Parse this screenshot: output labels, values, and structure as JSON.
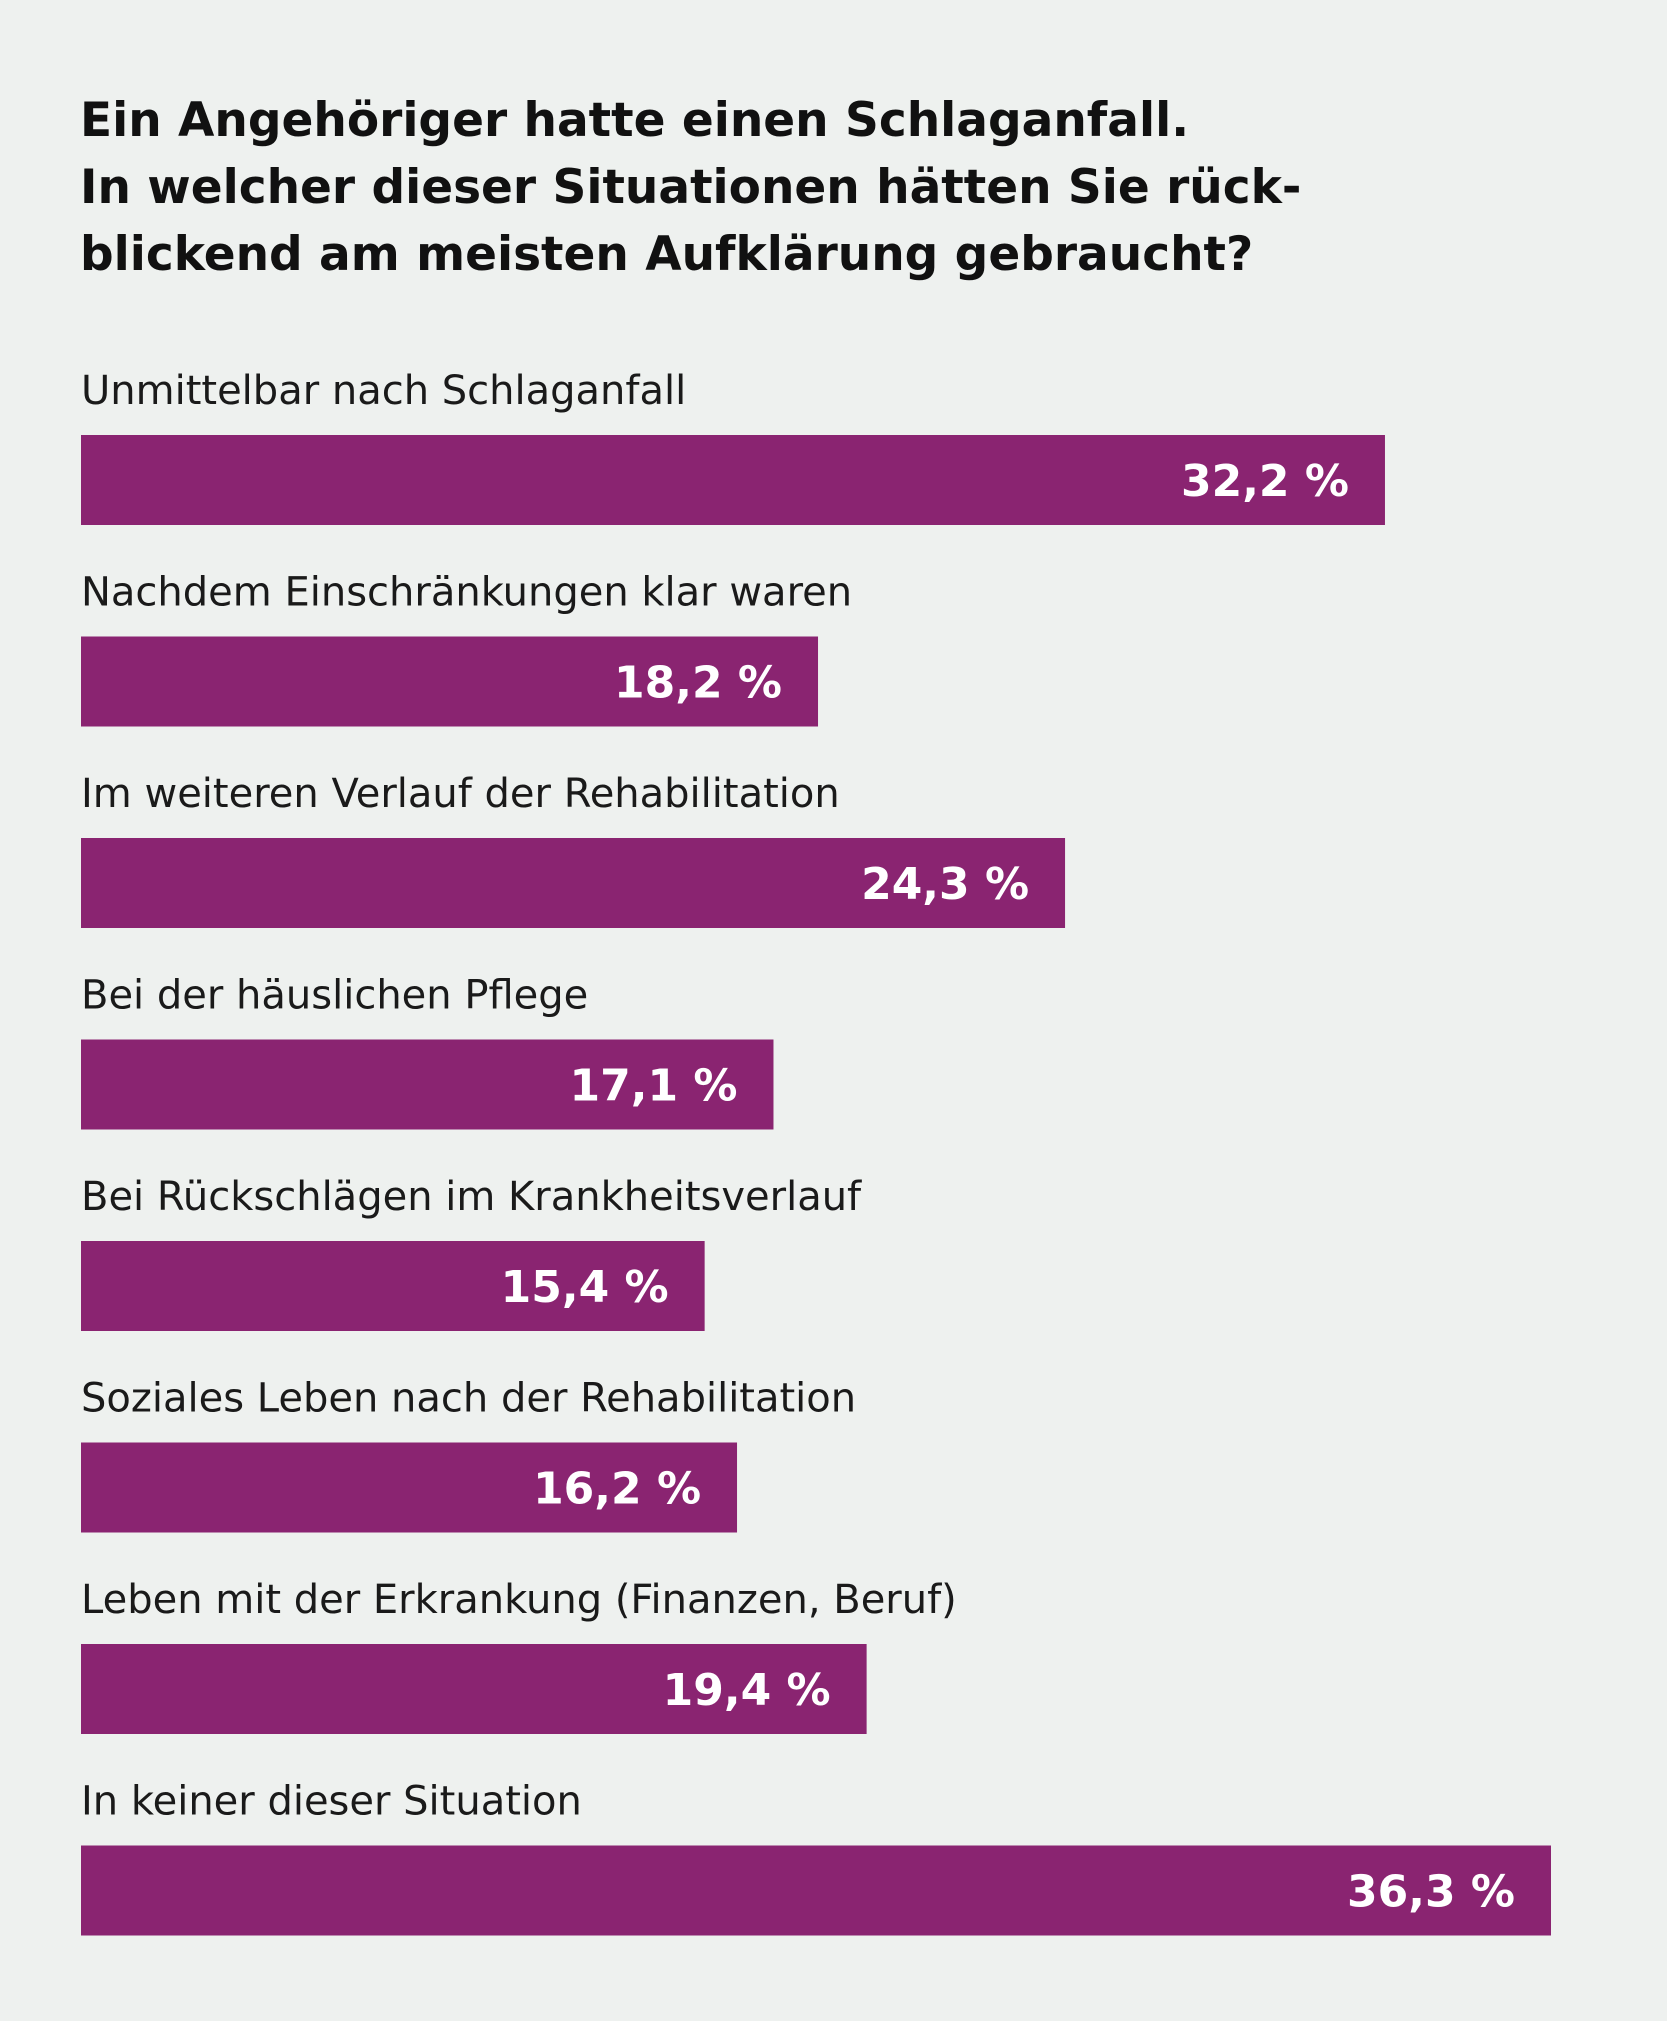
{
  "title_lines": [
    "Ein Angehöriger hatte einen Schlaganfall.",
    "In welcher dieser Situationen hätten Sie rück-",
    "blickend am meisten Aufklärung gebraucht?"
  ],
  "colors": {
    "background": "#eef1ef",
    "bar": "#8a2471",
    "value_text": "#ffffff",
    "text": "#111111"
  },
  "chart_data": {
    "type": "bar",
    "orientation": "horizontal",
    "title": "Ein Angehöriger hatte einen Schlaganfall. In welcher dieser Situationen hätten Sie rückblickend am meisten Aufklärung gebraucht?",
    "categories": [
      "Unmittelbar nach Schlaganfall",
      "Nachdem Einschränkungen klar waren",
      "Im weiteren Verlauf der Rehabilitation",
      "Bei der häuslichen Pflege",
      "Bei Rückschlägen im Krankheitsverlauf",
      "Soziales Leben nach der Rehabilitation",
      "Leben mit der Erkrankung (Finanzen, Beruf)",
      "In keiner dieser Situation"
    ],
    "values": [
      32.2,
      18.2,
      24.3,
      17.1,
      15.4,
      16.2,
      19.4,
      36.3
    ],
    "value_labels": [
      "32,2 %",
      "18,2 %",
      "24,3 %",
      "17,1 %",
      "15,4 %",
      "16,2 %",
      "19,4 %",
      "36,3 %"
    ],
    "unit": "%",
    "xlim": [
      0,
      36.3
    ],
    "grid": false,
    "legend": "none"
  }
}
